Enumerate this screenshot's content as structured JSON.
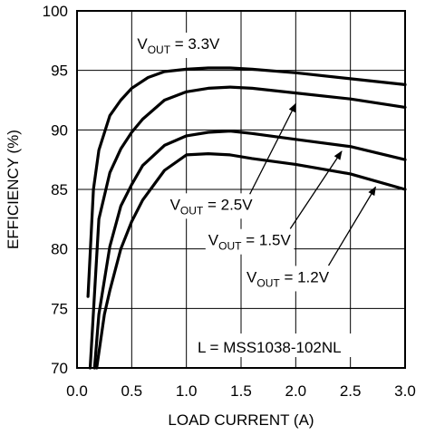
{
  "chart_data": {
    "type": "line",
    "xlabel": "LOAD CURRENT (A)",
    "ylabel": "EFFICIENCY (%)",
    "xlim": [
      0.0,
      3.0
    ],
    "ylim": [
      70,
      100
    ],
    "xticks": [
      "0.0",
      "0.5",
      "1.0",
      "1.5",
      "2.0",
      "2.5",
      "3.0"
    ],
    "yticks": [
      "70",
      "75",
      "80",
      "85",
      "90",
      "95",
      "100"
    ],
    "grid": true,
    "note": "L = MSS1038-102NL",
    "colors": {
      "line": "#000000",
      "grid": "#000000",
      "background": "#ffffff"
    },
    "series": [
      {
        "label_main": "V",
        "label_sub": "OUT",
        "label_tail": " = 3.3V",
        "x": [
          0.1,
          0.15,
          0.2,
          0.3,
          0.4,
          0.5,
          0.65,
          0.8,
          1.0,
          1.2,
          1.4,
          1.6,
          2.0,
          2.5,
          3.0
        ],
        "y": [
          76,
          85,
          88.3,
          91.2,
          92.5,
          93.5,
          94.4,
          94.9,
          95.1,
          95.2,
          95.2,
          95.1,
          94.8,
          94.3,
          93.8
        ]
      },
      {
        "label_main": "V",
        "label_sub": "OUT",
        "label_tail": " = 2.5V",
        "x": [
          0.12,
          0.2,
          0.3,
          0.4,
          0.5,
          0.6,
          0.8,
          1.0,
          1.2,
          1.4,
          1.6,
          2.0,
          2.5,
          3.0
        ],
        "y": [
          70,
          82.5,
          86.4,
          88.4,
          89.8,
          90.9,
          92.5,
          93.2,
          93.5,
          93.6,
          93.5,
          93.1,
          92.6,
          91.9
        ]
      },
      {
        "label_main": "V",
        "label_sub": "OUT",
        "label_tail": " = 1.5V",
        "x": [
          0.16,
          0.2,
          0.3,
          0.4,
          0.5,
          0.6,
          0.8,
          1.0,
          1.2,
          1.4,
          1.6,
          2.0,
          2.5,
          3.0
        ],
        "y": [
          70,
          74.5,
          80.2,
          83.6,
          85.4,
          87.0,
          88.7,
          89.5,
          89.8,
          89.9,
          89.7,
          89.2,
          88.6,
          87.5
        ]
      },
      {
        "label_main": "V",
        "label_sub": "OUT",
        "label_tail": " = 1.2V",
        "x": [
          0.18,
          0.25,
          0.3,
          0.4,
          0.5,
          0.6,
          0.8,
          1.0,
          1.2,
          1.4,
          1.6,
          2.0,
          2.5,
          3.0
        ],
        "y": [
          70,
          74.5,
          76.5,
          80,
          82.3,
          84.1,
          86.6,
          87.9,
          88.0,
          87.9,
          87.6,
          87.1,
          86.3,
          85.0
        ]
      }
    ],
    "annotations": [
      {
        "series": 0,
        "text_x": 0.55,
        "text_y": 96.8
      },
      {
        "series": 1,
        "text_x": 0.85,
        "text_y": 83.3,
        "arrow_from": [
          1.58,
          84.6
        ],
        "arrow_to": [
          2.0,
          92.2
        ]
      },
      {
        "series": 2,
        "text_x": 1.2,
        "text_y": 80.3,
        "arrow_from": [
          1.95,
          81.7
        ],
        "arrow_to": [
          2.42,
          88.2
        ]
      },
      {
        "series": 3,
        "text_x": 1.55,
        "text_y": 77.2,
        "arrow_from": [
          2.3,
          78.6
        ],
        "arrow_to": [
          2.73,
          85.2
        ]
      }
    ]
  }
}
